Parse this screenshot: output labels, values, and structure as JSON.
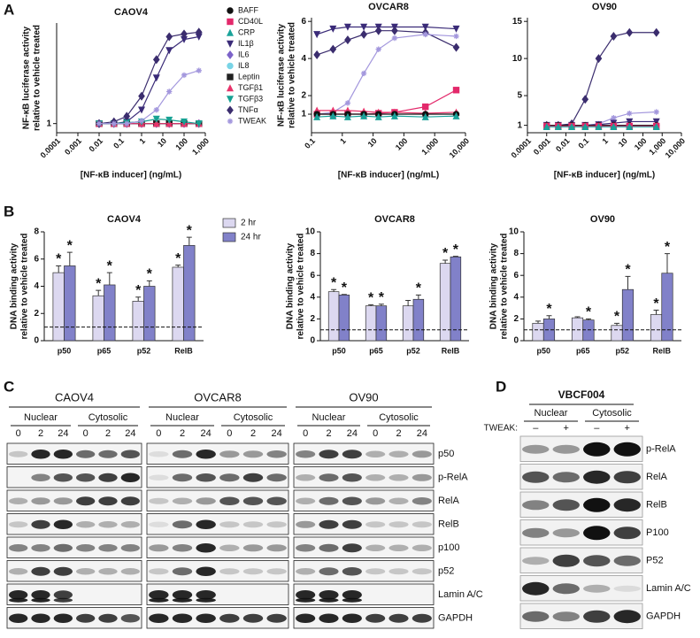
{
  "panels": {
    "labels": [
      "A",
      "B",
      "C",
      "D"
    ]
  },
  "chart_data": [
    {
      "type": "line",
      "title": "CAOV4",
      "x_label": "[NF-κB inducer] (ng/mL)",
      "y_label": [
        "NF-κB luciferase activity",
        "relative to vehicle treated"
      ],
      "x": [
        0.01,
        0.05,
        0.2,
        1,
        5,
        20,
        100,
        500
      ],
      "log_x": true,
      "xlim": [
        0.0001,
        1000
      ],
      "xticks": [
        0.0001,
        0.001,
        0.01,
        0.1,
        1,
        10,
        100,
        {
          "value": 1000,
          "label": "1,000"
        }
      ],
      "ylim": [
        0,
        12
      ],
      "yticks": [
        1
      ],
      "legend": "right",
      "series": [
        {
          "name": "BAFF",
          "color": "#111111",
          "marker": "circle",
          "values": [
            1,
            1,
            1,
            1,
            1,
            1,
            1,
            1
          ]
        },
        {
          "name": "CD40L",
          "color": "#e3296b",
          "marker": "square",
          "values": [
            1,
            1,
            1,
            1,
            1,
            1,
            1,
            1
          ]
        },
        {
          "name": "CRP",
          "color": "#1aa39a",
          "marker": "triangle",
          "values": [
            1,
            1,
            1,
            1,
            1,
            1,
            1,
            1
          ]
        },
        {
          "name": "IL1β",
          "color": "#3a2b78",
          "marker": "triangle-down",
          "values": [
            1,
            1,
            1.2,
            2.5,
            6,
            9,
            10.2,
            10.5
          ]
        },
        {
          "name": "IL6",
          "color": "#7c63c9",
          "marker": "diamond",
          "values": [
            1,
            1,
            1,
            1,
            1,
            1,
            1,
            1
          ]
        },
        {
          "name": "IL8",
          "color": "#79d4e6",
          "marker": "circle",
          "values": [
            1,
            1,
            1,
            1,
            1,
            1,
            1,
            1
          ]
        },
        {
          "name": "Leptin",
          "color": "#222222",
          "marker": "square",
          "values": [
            1,
            1,
            1,
            1,
            1,
            1,
            1,
            1
          ]
        },
        {
          "name": "TGFβ1",
          "color": "#e8346b",
          "marker": "triangle",
          "values": [
            1,
            1,
            1,
            1,
            1,
            1,
            1,
            1
          ]
        },
        {
          "name": "TGFβ3",
          "color": "#17a193",
          "marker": "triangle-down",
          "values": [
            1,
            1,
            1.1,
            1.2,
            1.5,
            1.4,
            1.2,
            1
          ]
        },
        {
          "name": "TNFα",
          "color": "#3b2d6e",
          "marker": "diamond",
          "values": [
            1,
            1.2,
            1.8,
            4,
            8,
            10.5,
            10.8,
            11
          ]
        },
        {
          "name": "TWEAK",
          "color": "#a397dd",
          "marker": "star",
          "values": [
            1,
            1,
            1,
            1.3,
            2.5,
            4.5,
            6.3,
            6.8
          ]
        }
      ]
    },
    {
      "type": "line",
      "title": "OVCAR8",
      "x_label": "[NF-κB inducer] (ng/mL)",
      "y_label": [
        "NF-κB luciferase activity",
        "relative to vehicle treated"
      ],
      "x": [
        0.15,
        0.5,
        1.5,
        5,
        15,
        50,
        500,
        5000
      ],
      "log_x": true,
      "xlim": [
        0.1,
        10000
      ],
      "xticks": [
        0.1,
        1,
        10,
        100,
        {
          "value": 1000,
          "label": "1,000"
        },
        {
          "value": 10000,
          "label": "10,000"
        }
      ],
      "ylim": [
        0,
        6.2
      ],
      "yticks": [
        1,
        2,
        4,
        6
      ],
      "series": [
        {
          "color": "#3a2b78",
          "marker": "triangle-down",
          "values": [
            5.3,
            5.6,
            5.7,
            5.7,
            5.7,
            5.7,
            5.7,
            5.6
          ]
        },
        {
          "color": "#3b2d6e",
          "marker": "diamond",
          "values": [
            4.2,
            4.5,
            5,
            5.3,
            5.5,
            5.5,
            5.4,
            4.6
          ]
        },
        {
          "color": "#a397dd",
          "marker": "star",
          "values": [
            1,
            1.1,
            1.6,
            3.2,
            4.5,
            5.1,
            5.3,
            5.2
          ]
        },
        {
          "color": "#e3296b",
          "marker": "square",
          "values": [
            1,
            1,
            1,
            1,
            1.05,
            1.1,
            1.4,
            2.3
          ]
        },
        {
          "color": "#e8346b",
          "marker": "triangle",
          "values": [
            1.2,
            1.2,
            1.2,
            1.15,
            1.1,
            1.1,
            1.05,
            1.1
          ]
        },
        {
          "color": "#111111",
          "marker": "circle",
          "values": [
            1,
            1,
            1,
            1,
            1,
            1,
            1,
            1
          ]
        },
        {
          "color": "#1aa39a",
          "marker": "triangle",
          "values": [
            0.85,
            0.9,
            0.85,
            0.9,
            0.85,
            0.9,
            0.85,
            0.9
          ]
        }
      ]
    },
    {
      "type": "line",
      "title": "OV90",
      "x_label": "[NF-κB inducer] (ng/mL)",
      "x": [
        0.001,
        0.004,
        0.02,
        0.1,
        0.5,
        3,
        20,
        500
      ],
      "log_x": true,
      "xlim": [
        0.0001,
        10000
      ],
      "xticks": [
        0.0001,
        0.001,
        0.01,
        0.1,
        1,
        10,
        100,
        {
          "value": 1000,
          "label": "1,000"
        },
        {
          "value": 10000,
          "label": "10,000"
        }
      ],
      "ylim": [
        0,
        15.5
      ],
      "yticks": [
        1,
        5,
        10,
        15
      ],
      "series": [
        {
          "color": "#3b2d6e",
          "marker": "diamond",
          "values": [
            1,
            1,
            1.2,
            4.5,
            10,
            13,
            13.5,
            13.5
          ]
        },
        {
          "color": "#a397dd",
          "marker": "star",
          "values": [
            1,
            1,
            1,
            1,
            1.2,
            2,
            2.6,
            2.8
          ]
        },
        {
          "color": "#3a2b78",
          "marker": "triangle-down",
          "values": [
            1,
            1,
            1,
            1,
            1.1,
            1.3,
            1.5,
            1.5
          ]
        },
        {
          "color": "#111111",
          "marker": "circle",
          "values": [
            1,
            1,
            1,
            1,
            1,
            1,
            1,
            1
          ]
        },
        {
          "color": "#e3296b",
          "marker": "square",
          "values": [
            0.9,
            0.9,
            0.9,
            0.9,
            0.9,
            0.9,
            0.9,
            0.9
          ]
        },
        {
          "color": "#1aa39a",
          "marker": "triangle",
          "values": [
            0.8,
            0.8,
            0.8,
            0.8,
            0.8,
            0.8,
            0.8,
            0.8
          ]
        }
      ]
    },
    {
      "type": "bar",
      "title": "CAOV4",
      "y_label": [
        "DNA binding activity",
        "relative to vehicle treated"
      ],
      "categories": [
        "p50",
        "p65",
        "p52",
        "RelB"
      ],
      "ylim": [
        0,
        8
      ],
      "yticks": [
        0,
        2,
        4,
        6,
        8
      ],
      "refline": 1,
      "legend": "right",
      "series": [
        {
          "name": "2 hr",
          "color": "#dcd8f0",
          "values": [
            5,
            3.3,
            2.9,
            5.4
          ],
          "errors": [
            0.5,
            0.4,
            0.3,
            0.15
          ],
          "annotations": [
            "*",
            "*",
            "*",
            "*"
          ]
        },
        {
          "name": "24 hr",
          "color": "#8181c9",
          "values": [
            5.5,
            4.1,
            4,
            7
          ],
          "errors": [
            1,
            0.9,
            0.4,
            0.6
          ],
          "annotations": [
            "*",
            "*",
            "*",
            "*"
          ]
        }
      ]
    },
    {
      "type": "bar",
      "title": "OVCAR8",
      "y_label": [
        "DNA binding activity",
        "relative to vehicle treated"
      ],
      "categories": [
        "p50",
        "p65",
        "p52",
        "RelB"
      ],
      "ylim": [
        0,
        10
      ],
      "yticks": [
        0,
        2,
        4,
        6,
        8,
        10
      ],
      "refline": 1,
      "series": [
        {
          "color": "#dcd8f0",
          "values": [
            4.5,
            3.2,
            3.2,
            7.1
          ],
          "errors": [
            0.2,
            0.1,
            0.5,
            0.3
          ],
          "annotations": [
            "*",
            "*",
            null,
            "*"
          ]
        },
        {
          "color": "#8181c9",
          "values": [
            4.2,
            3.2,
            3.8,
            7.7
          ],
          "errors": [
            0.05,
            0.15,
            0.4,
            0.05
          ],
          "annotations": [
            "*",
            "*",
            "*",
            "*"
          ]
        }
      ]
    },
    {
      "type": "bar",
      "title": "OV90",
      "y_label": [
        "DNA binding activity",
        "relative to vehicle treated"
      ],
      "categories": [
        "p50",
        "p65",
        "p52",
        "RelB"
      ],
      "ylim": [
        0,
        10
      ],
      "yticks": [
        0,
        2,
        4,
        6,
        8,
        10
      ],
      "refline": 1,
      "series": [
        {
          "color": "#dcd8f0",
          "values": [
            1.6,
            2.1,
            1.4,
            2.4
          ],
          "errors": [
            0.2,
            0.1,
            0.2,
            0.4
          ],
          "annotations": [
            null,
            null,
            "*",
            "*"
          ]
        },
        {
          "color": "#8181c9",
          "values": [
            2,
            1.9,
            4.7,
            6.2
          ],
          "errors": [
            0.3,
            0.1,
            1.2,
            1.8
          ],
          "annotations": [
            "*",
            "*",
            "*",
            "*"
          ]
        }
      ]
    }
  ],
  "blots": {
    "groups": [
      {
        "name": "CAOV4"
      },
      {
        "name": "OVCAR8"
      },
      {
        "name": "OV90"
      }
    ],
    "fractions": [
      "Nuclear",
      "Cytosolic"
    ],
    "lanes": [
      "0",
      "2",
      "24",
      "0",
      "2",
      "24"
    ],
    "rows": [
      "p50",
      "p-RelA",
      "RelA",
      "RelB",
      "p100",
      "p52",
      "Lamin A/C",
      "GAPDH"
    ]
  },
  "blot_d": {
    "title": "VBCF004",
    "fractions": [
      "Nuclear",
      "Cytosolic"
    ],
    "treatment": "TWEAK:",
    "lanes": [
      "–",
      "+",
      "–",
      "+"
    ],
    "rows": [
      "p-RelA",
      "RelA",
      "RelB",
      "P100",
      "P52",
      "Lamin A/C",
      "GAPDH"
    ]
  }
}
